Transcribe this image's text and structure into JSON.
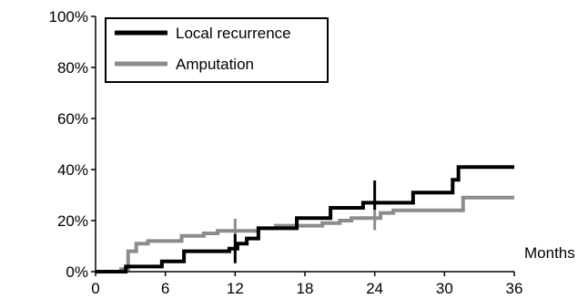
{
  "chart_data": {
    "type": "line",
    "title": "",
    "xlabel": "Months",
    "ylabel": "",
    "xlim": [
      0,
      36
    ],
    "ylim": [
      0,
      100
    ],
    "x_ticks": [
      0,
      6,
      12,
      18,
      24,
      30,
      36
    ],
    "x_tick_labels": [
      "0",
      "6",
      "12",
      "18",
      "24",
      "30",
      "36"
    ],
    "y_ticks": [
      0,
      20,
      40,
      60,
      80,
      100
    ],
    "y_tick_labels": [
      "0%",
      "20%",
      "40%",
      "60%",
      "80%",
      "100%"
    ],
    "grid": false,
    "legend_position": "top-left",
    "series": [
      {
        "name": "Local recurrence",
        "color": "#000000",
        "step": true,
        "points": [
          [
            0,
            0
          ],
          [
            2.6,
            2
          ],
          [
            5.7,
            4
          ],
          [
            7.6,
            8
          ],
          [
            11.5,
            9
          ],
          [
            12.2,
            11
          ],
          [
            13,
            13
          ],
          [
            14,
            17
          ],
          [
            17.3,
            21
          ],
          [
            20.2,
            25
          ],
          [
            23,
            27
          ],
          [
            27.3,
            31
          ],
          [
            30.7,
            36
          ],
          [
            31.2,
            41
          ],
          [
            36,
            41
          ]
        ],
        "markers": [
          [
            12,
            9
          ],
          [
            24,
            30
          ]
        ]
      },
      {
        "name": "Amputation",
        "color": "#8c8c8c",
        "step": true,
        "points": [
          [
            0,
            0
          ],
          [
            2.2,
            1
          ],
          [
            2.8,
            8
          ],
          [
            3.5,
            11
          ],
          [
            4.5,
            12
          ],
          [
            7.4,
            14
          ],
          [
            9.3,
            15
          ],
          [
            10.5,
            16
          ],
          [
            12.3,
            16
          ],
          [
            14,
            17
          ],
          [
            15.5,
            18
          ],
          [
            19.5,
            19
          ],
          [
            21,
            20
          ],
          [
            22,
            21
          ],
          [
            24.5,
            23
          ],
          [
            25.6,
            24
          ],
          [
            31.6,
            29
          ],
          [
            36,
            29
          ]
        ],
        "markers": [
          [
            12,
            15
          ],
          [
            24,
            22
          ]
        ]
      }
    ]
  }
}
